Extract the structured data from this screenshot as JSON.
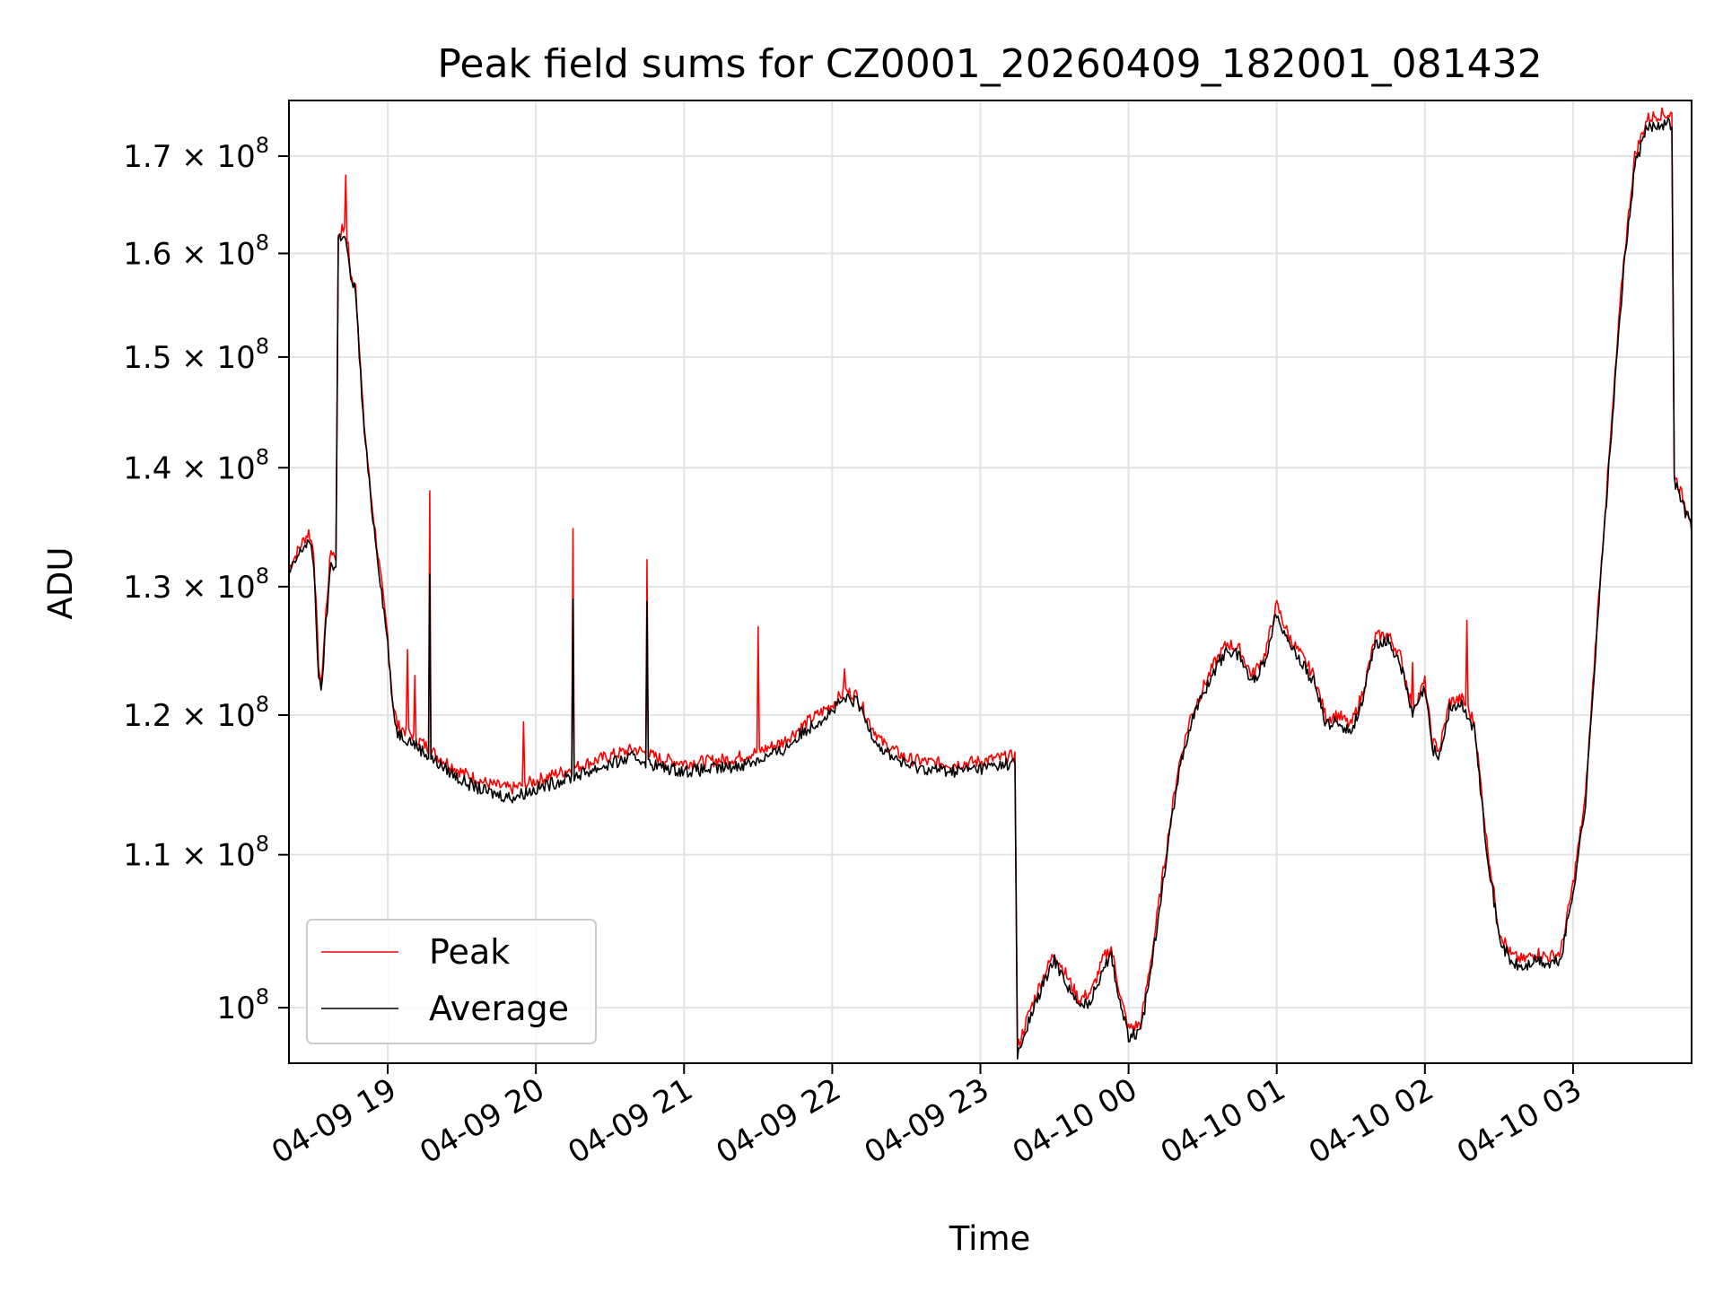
{
  "chart_data": {
    "type": "line",
    "title": "Peak field sums for CZ0001_20260409_182001_081432",
    "xlabel": "Time",
    "ylabel": "ADU",
    "yscale": "log",
    "ylim": [
      96600000,
      176000000
    ],
    "xlim": [
      "04-09 18:20",
      "04-10 03:48"
    ],
    "grid": true,
    "legend_position": "lower-left",
    "x_ticks": [
      "04-09 19",
      "04-09 20",
      "04-09 21",
      "04-09 22",
      "04-09 23",
      "04-10 00",
      "04-10 01",
      "04-10 02",
      "04-10 03"
    ],
    "y_ticks": [
      {
        "value": 100000000,
        "mantissa": "",
        "exp": "8"
      },
      {
        "value": 110000000,
        "mantissa": "1.1",
        "exp": "8"
      },
      {
        "value": 120000000,
        "mantissa": "1.2",
        "exp": "8"
      },
      {
        "value": 130000000,
        "mantissa": "1.3",
        "exp": "8"
      },
      {
        "value": 140000000,
        "mantissa": "1.4",
        "exp": "8"
      },
      {
        "value": 150000000,
        "mantissa": "1.5",
        "exp": "8"
      },
      {
        "value": 160000000,
        "mantissa": "1.6",
        "exp": "8"
      },
      {
        "value": 170000000,
        "mantissa": "1.7",
        "exp": "8"
      }
    ],
    "y_tick_base": "10",
    "y_tick_times": "×",
    "series": [
      {
        "name": "Peak",
        "color": "#ff0000",
        "points": [
          [
            "04-09 18:20",
            131500000
          ],
          [
            "04-09 18:25",
            133500000
          ],
          [
            "04-09 18:28",
            134500000
          ],
          [
            "04-09 18:30",
            133000000
          ],
          [
            "04-09 18:32",
            124000000
          ],
          [
            "04-09 18:33",
            122000000
          ],
          [
            "04-09 18:35",
            128000000
          ],
          [
            "04-09 18:37",
            133000000
          ],
          [
            "04-09 18:39",
            132500000
          ],
          [
            "04-09 18:40",
            162000000
          ],
          [
            "04-09 18:42",
            162500000
          ],
          [
            "04-09 18:44",
            161000000
          ],
          [
            "04-09 18:45",
            157500000
          ],
          [
            "04-09 18:47",
            157000000
          ],
          [
            "04-09 18:50",
            145000000
          ],
          [
            "04-09 18:53",
            138000000
          ],
          [
            "04-09 18:57",
            131000000
          ],
          [
            "04-09 19:00",
            126000000
          ],
          [
            "04-09 19:02",
            121000000
          ],
          [
            "04-09 19:04",
            119200000
          ],
          [
            "04-09 19:10",
            118500000
          ],
          [
            "04-09 19:15",
            117800000
          ],
          [
            "04-09 19:20",
            117000000
          ],
          [
            "04-09 19:30",
            115800000
          ],
          [
            "04-09 19:40",
            115000000
          ],
          [
            "04-09 19:50",
            114600000
          ],
          [
            "04-09 20:00",
            115200000
          ],
          [
            "04-09 20:10",
            115800000
          ],
          [
            "04-09 20:20",
            116400000
          ],
          [
            "04-09 20:30",
            117000000
          ],
          [
            "04-09 20:40",
            117500000
          ],
          [
            "04-09 20:50",
            116800000
          ],
          [
            "04-09 21:00",
            116500000
          ],
          [
            "04-09 21:10",
            116600000
          ],
          [
            "04-09 21:20",
            116800000
          ],
          [
            "04-09 21:30",
            117300000
          ],
          [
            "04-09 21:40",
            118000000
          ],
          [
            "04-09 21:50",
            119500000
          ],
          [
            "04-09 22:00",
            120800000
          ],
          [
            "04-09 22:05",
            121800000
          ],
          [
            "04-09 22:10",
            121500000
          ],
          [
            "04-09 22:15",
            119500000
          ],
          [
            "04-09 22:20",
            118000000
          ],
          [
            "04-09 22:30",
            116800000
          ],
          [
            "04-09 22:40",
            116500000
          ],
          [
            "04-09 22:50",
            116400000
          ],
          [
            "04-09 23:00",
            116600000
          ],
          [
            "04-09 23:14",
            117000000
          ],
          [
            "04-09 23:15",
            97500000
          ],
          [
            "04-09 23:20",
            99800000
          ],
          [
            "04-09 23:25",
            101800000
          ],
          [
            "04-09 23:30",
            103500000
          ],
          [
            "04-09 23:35",
            102000000
          ],
          [
            "04-09 23:40",
            100500000
          ],
          [
            "04-09 23:45",
            101000000
          ],
          [
            "04-09 23:50",
            103200000
          ],
          [
            "04-09 23:53",
            103800000
          ],
          [
            "04-09 23:57",
            100500000
          ],
          [
            "04-10 00:00",
            98700000
          ],
          [
            "04-10 00:05",
            99000000
          ],
          [
            "04-10 00:10",
            104000000
          ],
          [
            "04-10 00:15",
            110000000
          ],
          [
            "04-10 00:20",
            116000000
          ],
          [
            "04-10 00:25",
            119800000
          ],
          [
            "04-10 00:30",
            122000000
          ],
          [
            "04-10 00:35",
            124000000
          ],
          [
            "04-10 00:40",
            125500000
          ],
          [
            "04-10 00:45",
            125000000
          ],
          [
            "04-10 00:50",
            123000000
          ],
          [
            "04-10 00:55",
            124500000
          ],
          [
            "04-10 01:00",
            128500000
          ],
          [
            "04-10 01:05",
            126000000
          ],
          [
            "04-10 01:10",
            124500000
          ],
          [
            "04-10 01:15",
            123000000
          ],
          [
            "04-10 01:20",
            119800000
          ],
          [
            "04-10 01:25",
            120000000
          ],
          [
            "04-10 01:30",
            119200000
          ],
          [
            "04-10 01:35",
            121800000
          ],
          [
            "04-10 01:40",
            126000000
          ],
          [
            "04-10 01:45",
            126200000
          ],
          [
            "04-10 01:50",
            124500000
          ],
          [
            "04-10 01:55",
            120500000
          ],
          [
            "04-10 02:00",
            122500000
          ],
          [
            "04-10 02:03",
            118000000
          ],
          [
            "04-10 02:06",
            117500000
          ],
          [
            "04-10 02:10",
            121000000
          ],
          [
            "04-10 02:15",
            121200000
          ],
          [
            "04-10 02:20",
            119500000
          ],
          [
            "04-10 02:25",
            111000000
          ],
          [
            "04-10 02:30",
            105000000
          ],
          [
            "04-10 02:35",
            103300000
          ],
          [
            "04-10 02:40",
            103000000
          ],
          [
            "04-10 02:45",
            103500000
          ],
          [
            "04-10 02:50",
            103200000
          ],
          [
            "04-10 02:55",
            103500000
          ],
          [
            "04-10 03:00",
            108000000
          ],
          [
            "04-10 03:05",
            114000000
          ],
          [
            "04-10 03:10",
            128000000
          ],
          [
            "04-10 03:15",
            142000000
          ],
          [
            "04-10 03:20",
            158000000
          ],
          [
            "04-10 03:25",
            170000000
          ],
          [
            "04-10 03:30",
            174000000
          ],
          [
            "04-10 03:35",
            174500000
          ],
          [
            "04-10 03:40",
            174500000
          ],
          [
            "04-10 03:41",
            139500000
          ],
          [
            "04-10 03:45",
            137000000
          ],
          [
            "04-10 03:48",
            135500000
          ]
        ],
        "spikes": [
          [
            "04-09 18:43",
            168000000
          ],
          [
            "04-09 19:08",
            125000000
          ],
          [
            "04-09 19:11",
            123000000
          ],
          [
            "04-09 19:17",
            138000000
          ],
          [
            "04-09 19:55",
            119500000
          ],
          [
            "04-09 20:15",
            134800000
          ],
          [
            "04-09 20:45",
            132200000
          ],
          [
            "04-09 21:30",
            126800000
          ],
          [
            "04-09 22:05",
            123500000
          ],
          [
            "04-10 02:17",
            127300000
          ],
          [
            "04-10 01:55",
            124000000
          ]
        ]
      },
      {
        "name": "Average",
        "color": "#000000",
        "points": [
          [
            "04-09 18:20",
            131000000
          ],
          [
            "04-09 18:25",
            133000000
          ],
          [
            "04-09 18:28",
            133800000
          ],
          [
            "04-09 18:30",
            132000000
          ],
          [
            "04-09 18:32",
            123000000
          ],
          [
            "04-09 18:33",
            121500000
          ],
          [
            "04-09 18:35",
            127000000
          ],
          [
            "04-09 18:37",
            132000000
          ],
          [
            "04-09 18:39",
            131500000
          ],
          [
            "04-09 18:40",
            161500000
          ],
          [
            "04-09 18:42",
            162000000
          ],
          [
            "04-09 18:44",
            160000000
          ],
          [
            "04-09 18:45",
            157000000
          ],
          [
            "04-09 18:47",
            156500000
          ],
          [
            "04-09 18:50",
            144500000
          ],
          [
            "04-09 18:53",
            137500000
          ],
          [
            "04-09 18:57",
            130500000
          ],
          [
            "04-09 19:00",
            125500000
          ],
          [
            "04-09 19:02",
            120500000
          ],
          [
            "04-09 19:04",
            118700000
          ],
          [
            "04-09 19:10",
            118000000
          ],
          [
            "04-09 19:15",
            117200000
          ],
          [
            "04-09 19:20",
            116500000
          ],
          [
            "04-09 19:30",
            115200000
          ],
          [
            "04-09 19:40",
            114400000
          ],
          [
            "04-09 19:50",
            114000000
          ],
          [
            "04-09 20:00",
            114600000
          ],
          [
            "04-09 20:10",
            115200000
          ],
          [
            "04-09 20:20",
            115800000
          ],
          [
            "04-09 20:30",
            116400000
          ],
          [
            "04-09 20:40",
            116900000
          ],
          [
            "04-09 20:50",
            116200000
          ],
          [
            "04-09 21:00",
            115900000
          ],
          [
            "04-09 21:10",
            116000000
          ],
          [
            "04-09 21:20",
            116200000
          ],
          [
            "04-09 21:30",
            116700000
          ],
          [
            "04-09 21:40",
            117400000
          ],
          [
            "04-09 21:50",
            119000000
          ],
          [
            "04-09 22:00",
            120300000
          ],
          [
            "04-09 22:05",
            121200000
          ],
          [
            "04-09 22:10",
            121000000
          ],
          [
            "04-09 22:15",
            119000000
          ],
          [
            "04-09 22:20",
            117500000
          ],
          [
            "04-09 22:30",
            116300000
          ],
          [
            "04-09 22:40",
            116000000
          ],
          [
            "04-09 22:50",
            115900000
          ],
          [
            "04-09 23:00",
            116100000
          ],
          [
            "04-09 23:14",
            116500000
          ],
          [
            "04-09 23:15",
            97000000
          ],
          [
            "04-09 23:20",
            99300000
          ],
          [
            "04-09 23:25",
            101300000
          ],
          [
            "04-09 23:30",
            103000000
          ],
          [
            "04-09 23:35",
            101500000
          ],
          [
            "04-09 23:40",
            100000000
          ],
          [
            "04-09 23:45",
            100500000
          ],
          [
            "04-09 23:50",
            102700000
          ],
          [
            "04-09 23:53",
            103300000
          ],
          [
            "04-09 23:57",
            100000000
          ],
          [
            "04-10 00:00",
            98200000
          ],
          [
            "04-10 00:05",
            98500000
          ],
          [
            "04-10 00:10",
            103500000
          ],
          [
            "04-10 00:15",
            109500000
          ],
          [
            "04-10 00:20",
            115500000
          ],
          [
            "04-10 00:25",
            119300000
          ],
          [
            "04-10 00:30",
            121500000
          ],
          [
            "04-10 00:35",
            123500000
          ],
          [
            "04-10 00:40",
            125000000
          ],
          [
            "04-10 00:45",
            124500000
          ],
          [
            "04-10 00:50",
            122500000
          ],
          [
            "04-10 00:55",
            124000000
          ],
          [
            "04-10 01:00",
            128000000
          ],
          [
            "04-10 01:05",
            125500000
          ],
          [
            "04-10 01:10",
            124000000
          ],
          [
            "04-10 01:15",
            122500000
          ],
          [
            "04-10 01:20",
            119300000
          ],
          [
            "04-10 01:25",
            119500000
          ],
          [
            "04-10 01:30",
            118700000
          ],
          [
            "04-10 01:35",
            121300000
          ],
          [
            "04-10 01:40",
            125500000
          ],
          [
            "04-10 01:45",
            125700000
          ],
          [
            "04-10 01:50",
            124000000
          ],
          [
            "04-10 01:55",
            120000000
          ],
          [
            "04-10 02:00",
            122000000
          ],
          [
            "04-10 02:03",
            117500000
          ],
          [
            "04-10 02:06",
            117000000
          ],
          [
            "04-10 02:10",
            120500000
          ],
          [
            "04-10 02:15",
            120700000
          ],
          [
            "04-10 02:20",
            119000000
          ],
          [
            "04-10 02:25",
            110500000
          ],
          [
            "04-10 02:30",
            104500000
          ],
          [
            "04-10 02:35",
            102800000
          ],
          [
            "04-10 02:40",
            102500000
          ],
          [
            "04-10 02:45",
            103000000
          ],
          [
            "04-10 02:50",
            102700000
          ],
          [
            "04-10 02:55",
            103000000
          ],
          [
            "04-10 03:00",
            107500000
          ],
          [
            "04-10 03:05",
            113500000
          ],
          [
            "04-10 03:10",
            127500000
          ],
          [
            "04-10 03:15",
            141500000
          ],
          [
            "04-10 03:20",
            157000000
          ],
          [
            "04-10 03:25",
            169000000
          ],
          [
            "04-10 03:30",
            173000000
          ],
          [
            "04-10 03:35",
            173500000
          ],
          [
            "04-10 03:40",
            173500000
          ],
          [
            "04-10 03:41",
            139000000
          ],
          [
            "04-10 03:45",
            136500000
          ],
          [
            "04-10 03:48",
            135000000
          ]
        ],
        "spikes": [
          [
            "04-09 19:17",
            131000000
          ],
          [
            "04-09 20:15",
            129000000
          ],
          [
            "04-09 20:45",
            128800000
          ]
        ]
      }
    ]
  }
}
